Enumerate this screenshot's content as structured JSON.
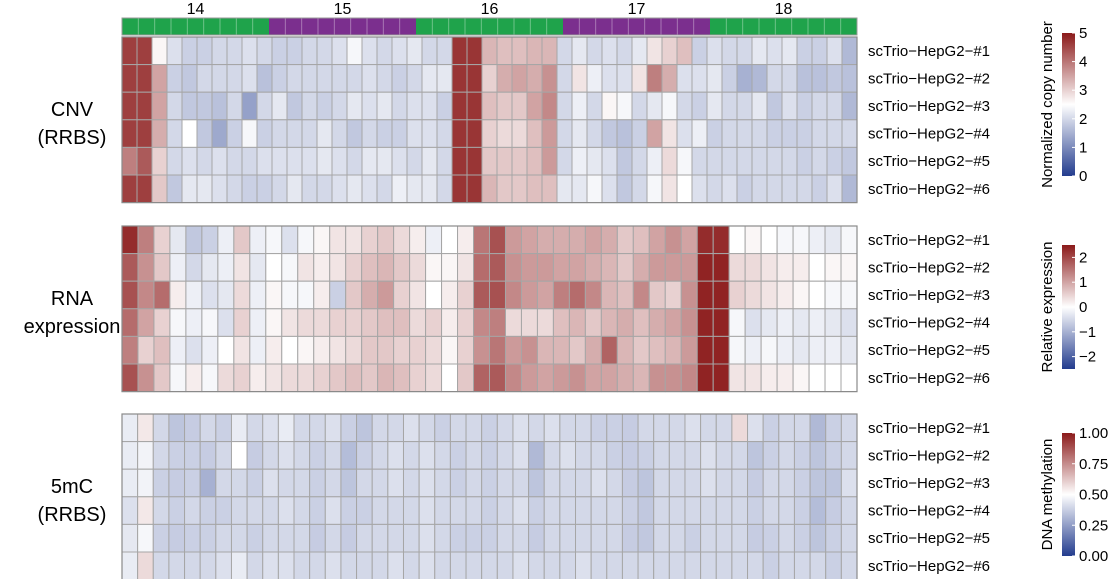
{
  "chart_data": {
    "type": "heatmap",
    "chromosomes": {
      "labels": [
        "14",
        "15",
        "16",
        "17",
        "18"
      ],
      "colors": [
        "#1fa34b",
        "#7b2f8e",
        "#1fa34b",
        "#7b2f8e",
        "#1fa34b"
      ]
    },
    "panels": [
      {
        "label_lines": [
          "CNV",
          "(RRBS)"
        ],
        "rows": [
          "scTrio−HepG2−#1",
          "scTrio−HepG2−#2",
          "scTrio−HepG2−#3",
          "scTrio−HepG2−#4",
          "scTrio−HepG2−#5",
          "scTrio−HepG2−#6"
        ],
        "legend_title": "Normalized copy number",
        "legend_ticks": [
          "0",
          "1",
          "2",
          "3",
          "4",
          "5"
        ],
        "range": [
          0,
          5
        ],
        "values": [
          [
            4.6,
            4.6,
            2.6,
            2.1,
            1.9,
            1.9,
            2.0,
            2.0,
            2.1,
            2.0,
            1.9,
            1.9,
            2.0,
            2.0,
            2.1,
            2.4,
            2.1,
            2.0,
            2.1,
            2.2,
            2.0,
            2.0,
            4.7,
            4.7,
            3.3,
            3.2,
            3.2,
            3.3,
            3.3,
            2.0,
            2.2,
            2.0,
            2.1,
            2.0,
            2.2,
            2.8,
            3.0,
            3.2,
            1.9,
            2.1,
            2.0,
            2.0,
            2.2,
            2.1,
            2.2,
            1.9,
            1.9,
            2.1,
            1.6
          ],
          [
            4.6,
            4.6,
            3.5,
            1.9,
            1.8,
            2.0,
            2.0,
            2.0,
            2.1,
            1.7,
            1.9,
            2.0,
            2.0,
            2.0,
            2.0,
            2.0,
            2.1,
            2.0,
            1.9,
            2.0,
            2.2,
            2.2,
            4.7,
            4.7,
            3.0,
            3.4,
            3.5,
            3.4,
            3.7,
            2.0,
            2.8,
            2.3,
            2.1,
            2.1,
            2.8,
            3.9,
            3.4,
            2.1,
            2.1,
            2.2,
            1.9,
            1.5,
            1.6,
            2.0,
            2.0,
            1.7,
            1.7,
            1.8,
            1.7
          ],
          [
            4.6,
            4.6,
            3.5,
            2.0,
            1.8,
            1.8,
            1.7,
            2.0,
            1.3,
            2.0,
            2.2,
            1.8,
            2.0,
            1.9,
            2.0,
            2.2,
            2.1,
            2.2,
            2.0,
            2.1,
            2.1,
            1.9,
            4.7,
            4.7,
            3.2,
            3.1,
            3.1,
            3.5,
            3.8,
            2.0,
            2.3,
            2.0,
            2.6,
            2.4,
            2.0,
            2.2,
            2.4,
            2.0,
            1.9,
            2.2,
            2.0,
            2.0,
            2.2,
            1.8,
            2.1,
            1.9,
            2.0,
            2.0,
            1.6
          ],
          [
            4.6,
            4.6,
            3.4,
            2.0,
            2.5,
            1.8,
            1.4,
            1.9,
            2.4,
            1.9,
            2.0,
            2.0,
            2.0,
            2.2,
            2.0,
            1.8,
            2.0,
            1.9,
            1.9,
            2.1,
            2.1,
            2.0,
            4.7,
            4.7,
            3.0,
            2.9,
            2.9,
            3.2,
            3.6,
            2.0,
            2.2,
            2.0,
            1.8,
            1.7,
            1.9,
            3.5,
            2.8,
            2.1,
            2.3,
            1.9,
            2.0,
            2.0,
            2.0,
            1.9,
            1.9,
            1.9,
            2.0,
            2.0,
            2.0
          ],
          [
            3.9,
            4.3,
            3.0,
            2.0,
            2.1,
            2.0,
            2.1,
            2.0,
            2.0,
            2.1,
            2.1,
            2.1,
            2.1,
            2.2,
            2.1,
            2.0,
            2.2,
            2.2,
            2.1,
            2.0,
            2.2,
            2.0,
            4.7,
            4.7,
            3.1,
            3.1,
            3.1,
            3.2,
            3.6,
            2.0,
            2.3,
            2.2,
            2.1,
            1.8,
            2.0,
            2.3,
            2.9,
            2.4,
            2.0,
            2.0,
            2.0,
            2.0,
            2.0,
            2.0,
            2.0,
            1.9,
            2.0,
            1.9,
            1.8
          ],
          [
            4.6,
            4.6,
            3.1,
            1.8,
            2.2,
            2.2,
            2.1,
            2.0,
            1.9,
            1.9,
            2.0,
            2.2,
            2.0,
            2.0,
            2.1,
            2.2,
            2.1,
            2.0,
            2.3,
            2.2,
            2.2,
            2.0,
            4.7,
            4.7,
            3.3,
            3.1,
            3.1,
            3.2,
            3.2,
            2.2,
            2.2,
            2.4,
            2.1,
            1.8,
            2.0,
            2.4,
            2.8,
            2.5,
            2.1,
            2.0,
            2.1,
            1.9,
            2.0,
            2.0,
            2.0,
            2.0,
            1.9,
            2.1,
            1.6
          ]
        ]
      },
      {
        "label_lines": [
          "RNA",
          "expression"
        ],
        "rows": [
          "scTrio−HepG2−#1",
          "scTrio−HepG2−#2",
          "scTrio−HepG2−#3",
          "scTrio−HepG2−#4",
          "scTrio−HepG2−#5",
          "scTrio−HepG2−#6"
        ],
        "legend_title": "Relative expression",
        "legend_ticks": [
          "−2",
          "−1",
          "0",
          "1",
          "2"
        ],
        "range": [
          -2.5,
          2.5
        ],
        "values": [
          [
            2.3,
            1.4,
            0.5,
            -0.3,
            -0.7,
            -0.6,
            -0.2,
            0.6,
            -0.2,
            -0.1,
            -0.4,
            -0.1,
            0.1,
            0.3,
            0.3,
            0.5,
            0.6,
            0.4,
            0.2,
            -0.2,
            0.0,
            0.2,
            1.5,
            1.9,
            1.1,
            1.0,
            0.9,
            0.9,
            0.9,
            1.0,
            0.9,
            0.6,
            0.7,
            1.0,
            1.2,
            1.0,
            2.3,
            2.3,
            0.0,
            0.1,
            0.0,
            -0.1,
            -0.1,
            -0.2,
            -0.3,
            -0.1
          ],
          [
            1.8,
            1.2,
            0.6,
            -0.2,
            -0.5,
            -0.3,
            -0.2,
            0.3,
            -0.3,
            0.0,
            -0.1,
            0.3,
            0.2,
            0.3,
            0.5,
            0.7,
            0.8,
            0.6,
            0.4,
            0.1,
            0.1,
            0.3,
            1.6,
            1.8,
            1.2,
            1.1,
            1.1,
            1.0,
            1.0,
            0.9,
            0.8,
            0.6,
            0.9,
            1.1,
            1.1,
            1.1,
            2.4,
            2.4,
            0.4,
            0.4,
            0.3,
            0.2,
            0.2,
            0.0,
            0.1,
            0.1
          ],
          [
            1.9,
            1.3,
            1.6,
            0.2,
            -0.2,
            -0.4,
            -0.3,
            0.4,
            -0.2,
            0.1,
            -0.1,
            -0.1,
            0.2,
            -0.6,
            0.6,
            0.9,
            1.1,
            0.5,
            0.3,
            0.0,
            0.2,
            0.5,
            1.8,
            1.9,
            1.3,
            1.1,
            1.0,
            1.4,
            1.6,
            1.3,
            0.8,
            0.7,
            1.3,
            0.6,
            0.5,
            1.2,
            2.4,
            2.4,
            0.5,
            0.4,
            0.3,
            0.2,
            0.1,
            0.0,
            -0.1,
            -0.1
          ],
          [
            1.6,
            1.0,
            0.5,
            -0.1,
            -0.2,
            -0.1,
            -0.4,
            0.5,
            -0.2,
            0.1,
            0.3,
            0.4,
            0.4,
            0.5,
            0.5,
            0.6,
            0.7,
            0.7,
            0.4,
            0.5,
            0.2,
            0.5,
            1.3,
            1.4,
            0.4,
            0.4,
            0.4,
            0.7,
            0.8,
            0.6,
            0.8,
            0.9,
            0.7,
            0.9,
            1.0,
            1.2,
            2.4,
            2.4,
            -0.1,
            -0.4,
            -0.3,
            -0.2,
            -0.3,
            -0.2,
            -0.3,
            -0.4
          ],
          [
            1.4,
            0.5,
            0.7,
            -0.2,
            -0.4,
            -0.2,
            0.0,
            0.3,
            -0.2,
            0.2,
            0.0,
            0.1,
            0.2,
            0.3,
            0.4,
            0.6,
            0.6,
            0.5,
            0.5,
            0.4,
            0.1,
            0.5,
            1.2,
            1.5,
            1.1,
            1.2,
            0.8,
            0.8,
            0.6,
            0.9,
            1.7,
            0.8,
            0.6,
            0.7,
            0.8,
            1.1,
            2.4,
            2.4,
            -0.1,
            -0.2,
            -0.1,
            -0.2,
            -0.3,
            -0.2,
            -0.2,
            -0.3
          ],
          [
            1.9,
            1.2,
            0.6,
            -0.1,
            0.2,
            -0.1,
            0.4,
            0.5,
            0.2,
            0.3,
            0.4,
            0.4,
            0.5,
            0.6,
            0.7,
            0.6,
            0.8,
            0.7,
            0.5,
            0.4,
            0.0,
            0.6,
            1.7,
            1.8,
            1.3,
            1.1,
            1.0,
            1.1,
            1.2,
            1.0,
            1.0,
            0.9,
            0.8,
            1.2,
            1.2,
            1.3,
            2.4,
            2.4,
            0.3,
            0.3,
            0.2,
            0.2,
            0.1,
            0.0,
            0.0,
            0.0
          ]
        ]
      },
      {
        "label_lines": [
          "5mC",
          "(RRBS)"
        ],
        "rows": [
          "scTrio−HepG2−#1",
          "scTrio−HepG2−#2",
          "scTrio−HepG2−#3",
          "scTrio−HepG2−#4",
          "scTrio−HepG2−#5",
          "scTrio−HepG2−#6"
        ],
        "legend_title": "DNA methylation",
        "legend_ticks": [
          "0.00",
          "0.25",
          "0.50",
          "0.75",
          "1.00"
        ],
        "range": [
          0,
          1
        ],
        "values": [
          [
            0.45,
            0.55,
            0.4,
            0.35,
            0.37,
            0.4,
            0.38,
            0.45,
            0.4,
            0.42,
            0.45,
            0.4,
            0.4,
            0.42,
            0.38,
            0.35,
            0.4,
            0.4,
            0.42,
            0.4,
            0.38,
            0.4,
            0.4,
            0.38,
            0.4,
            0.42,
            0.4,
            0.42,
            0.4,
            0.4,
            0.38,
            0.38,
            0.37,
            0.4,
            0.4,
            0.4,
            0.42,
            0.4,
            0.4,
            0.58,
            0.42,
            0.38,
            0.4,
            0.4,
            0.32,
            0.38,
            0.4
          ],
          [
            0.45,
            0.47,
            0.4,
            0.38,
            0.38,
            0.37,
            0.4,
            0.5,
            0.37,
            0.4,
            0.42,
            0.4,
            0.38,
            0.4,
            0.33,
            0.38,
            0.4,
            0.42,
            0.4,
            0.42,
            0.4,
            0.38,
            0.4,
            0.38,
            0.4,
            0.42,
            0.32,
            0.4,
            0.42,
            0.4,
            0.4,
            0.38,
            0.37,
            0.38,
            0.4,
            0.4,
            0.4,
            0.42,
            0.4,
            0.4,
            0.35,
            0.38,
            0.4,
            0.38,
            0.35,
            0.38,
            0.4
          ],
          [
            0.45,
            0.47,
            0.38,
            0.37,
            0.38,
            0.3,
            0.4,
            0.4,
            0.38,
            0.42,
            0.4,
            0.4,
            0.38,
            0.4,
            0.35,
            0.4,
            0.4,
            0.42,
            0.4,
            0.42,
            0.4,
            0.38,
            0.4,
            0.38,
            0.4,
            0.4,
            0.35,
            0.4,
            0.4,
            0.4,
            0.42,
            0.4,
            0.37,
            0.35,
            0.4,
            0.4,
            0.4,
            0.42,
            0.4,
            0.4,
            0.37,
            0.4,
            0.4,
            0.38,
            0.35,
            0.35,
            0.42
          ],
          [
            0.42,
            0.55,
            0.4,
            0.38,
            0.4,
            0.38,
            0.38,
            0.4,
            0.4,
            0.4,
            0.42,
            0.4,
            0.38,
            0.42,
            0.38,
            0.38,
            0.4,
            0.4,
            0.4,
            0.42,
            0.4,
            0.4,
            0.4,
            0.38,
            0.4,
            0.42,
            0.38,
            0.4,
            0.4,
            0.4,
            0.4,
            0.4,
            0.38,
            0.36,
            0.4,
            0.4,
            0.4,
            0.4,
            0.4,
            0.4,
            0.38,
            0.4,
            0.4,
            0.38,
            0.33,
            0.37,
            0.4
          ],
          [
            0.44,
            0.48,
            0.38,
            0.37,
            0.38,
            0.38,
            0.4,
            0.4,
            0.38,
            0.4,
            0.4,
            0.4,
            0.37,
            0.4,
            0.37,
            0.4,
            0.4,
            0.4,
            0.4,
            0.42,
            0.4,
            0.38,
            0.38,
            0.38,
            0.4,
            0.4,
            0.37,
            0.4,
            0.4,
            0.4,
            0.4,
            0.4,
            0.37,
            0.36,
            0.4,
            0.4,
            0.38,
            0.4,
            0.4,
            0.4,
            0.37,
            0.38,
            0.4,
            0.38,
            0.35,
            0.38,
            0.4
          ],
          [
            0.45,
            0.58,
            0.4,
            0.4,
            0.4,
            0.4,
            0.42,
            0.45,
            0.4,
            0.42,
            0.42,
            0.4,
            0.4,
            0.42,
            0.4,
            0.4,
            0.4,
            0.42,
            0.4,
            0.42,
            0.4,
            0.4,
            0.4,
            0.4,
            0.4,
            0.42,
            0.4,
            0.4,
            0.4,
            0.42,
            0.4,
            0.4,
            0.4,
            0.4,
            0.4,
            0.4,
            0.4,
            0.4,
            0.4,
            0.4,
            0.4,
            0.38,
            0.4,
            0.4,
            0.4,
            0.38,
            0.4
          ]
        ]
      }
    ],
    "gradient_colors": [
      "#233c8e",
      "#ffffff",
      "#8b1a1a"
    ]
  }
}
